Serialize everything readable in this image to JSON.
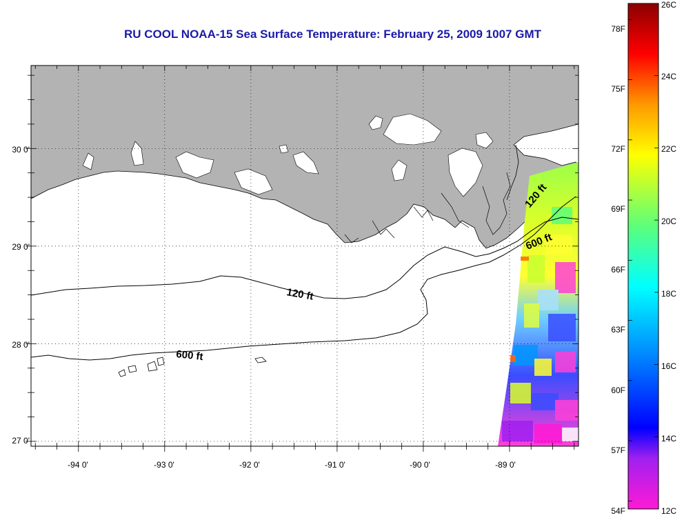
{
  "title": "RU COOL  NOAA-15  Sea Surface Temperature:  February 25, 2009 1007 GMT",
  "map": {
    "lat_ticks": [
      "30 0'",
      "29 0'",
      "28 0'",
      "27 0'"
    ],
    "lon_ticks": [
      "-94 0'",
      "-93 0'",
      "-92 0'",
      "-91 0'",
      "-90 0'",
      "-89 0'"
    ],
    "lat_values": [
      30,
      29,
      28,
      27
    ],
    "lon_values": [
      -94,
      -93,
      -92,
      -91,
      -90,
      -89
    ],
    "lon_range": [
      -94.55,
      -88.2
    ],
    "lat_range": [
      26.95,
      30.85
    ],
    "contours": [
      {
        "label": "120 ft",
        "id": "contour-120-west"
      },
      {
        "label": "600 ft",
        "id": "contour-600-west"
      },
      {
        "label": "120 ft",
        "id": "contour-120-east"
      },
      {
        "label": "600 ft",
        "id": "contour-600-east"
      }
    ],
    "land_color": "#b3b3b3",
    "grid_style": "dotted"
  },
  "colorbar": {
    "fahrenheit_labels": [
      "78F",
      "75F",
      "72F",
      "69F",
      "66F",
      "63F",
      "60F",
      "57F",
      "54F"
    ],
    "celsius_labels": [
      "26C",
      "24C",
      "22C",
      "20C",
      "18C",
      "16C",
      "14C",
      "12C"
    ],
    "celsius_min": 12,
    "celsius_max": 26,
    "colors": [
      "#ff1ad6",
      "#a020f0",
      "#0000ff",
      "#0096ff",
      "#00ffff",
      "#5cff7a",
      "#ffff00",
      "#ff9900",
      "#ff0000",
      "#8b0000"
    ]
  }
}
